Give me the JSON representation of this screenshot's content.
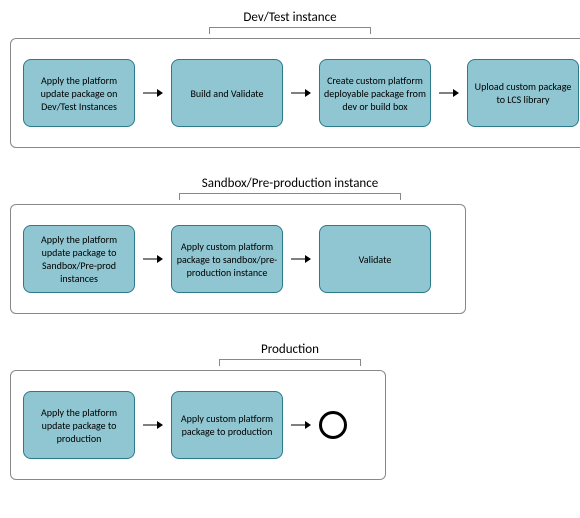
{
  "colors": {
    "node_fill": "#8fc6d1",
    "node_border": "#2a7a8a",
    "stage_border": "#888888",
    "arrow": "#000000",
    "bg": "#ffffff"
  },
  "typography": {
    "title_fontsize": 13,
    "node_fontsize": 10,
    "font_family": "Calibri, Arial, sans-serif"
  },
  "stages": {
    "devtest": {
      "title": "Dev/Test instance",
      "bracket_width": 160,
      "stage_width": 558,
      "nodes": [
        "Apply the platform update package on Dev/Test Instances",
        "Build and Validate",
        "Create custom platform deployable package from dev or build box",
        "Upload custom package to LCS library"
      ]
    },
    "sandbox": {
      "title": "Sandbox/Pre-production instance",
      "bracket_width": 220,
      "stage_width": 430,
      "nodes": [
        "Apply the platform update package to Sandbox/Pre-prod instances",
        "Apply custom platform package to sandbox/pre-production instance",
        "Validate"
      ]
    },
    "production": {
      "title": "Production",
      "bracket_width": 140,
      "stage_width": 350,
      "nodes": [
        "Apply the platform update package to production",
        "Apply custom platform package to production"
      ],
      "has_end_circle": true
    }
  }
}
